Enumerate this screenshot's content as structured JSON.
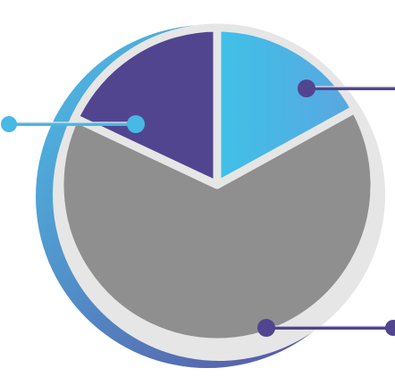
{
  "chart_data": {
    "type": "pie",
    "slices": [
      {
        "value": 17,
        "color": "#48B8E4"
      },
      {
        "value": 65,
        "color": "#8F8F8F"
      },
      {
        "value": 18,
        "color": "#524590"
      }
    ],
    "labels_shown": false,
    "legend": "none"
  },
  "colors": {
    "ring_outer_start": "#4BC2E8",
    "ring_outer_end": "#5B4B9E",
    "ring_inner": "#E6E6E6",
    "separator": "#E6E6E6",
    "cyan_gradient_start": "#3FC1E8",
    "cyan_gradient_end": "#5AA6E0",
    "callout_dark": "#524590",
    "callout_light": "#48B8E4"
  }
}
